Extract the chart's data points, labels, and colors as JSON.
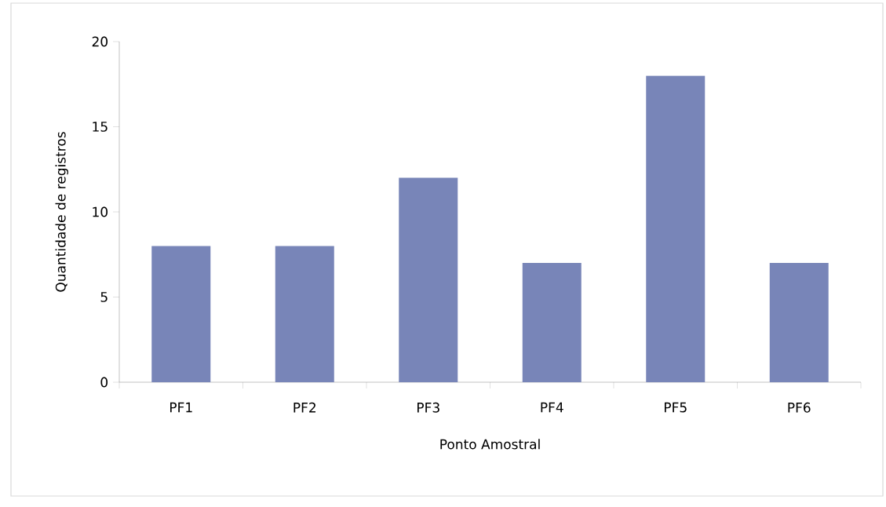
{
  "chart_data": {
    "type": "bar",
    "xlabel": "Ponto Amostral",
    "ylabel": "Quantidade de registros",
    "categories": [
      "PF1",
      "PF2",
      "PF3",
      "PF4",
      "PF5",
      "PF6"
    ],
    "values": [
      8,
      8,
      12,
      7,
      18,
      7
    ],
    "color": "#7885b8",
    "ylim": [
      0,
      20
    ],
    "yticks": [
      0,
      5,
      10,
      15,
      20
    ],
    "grid": false
  }
}
